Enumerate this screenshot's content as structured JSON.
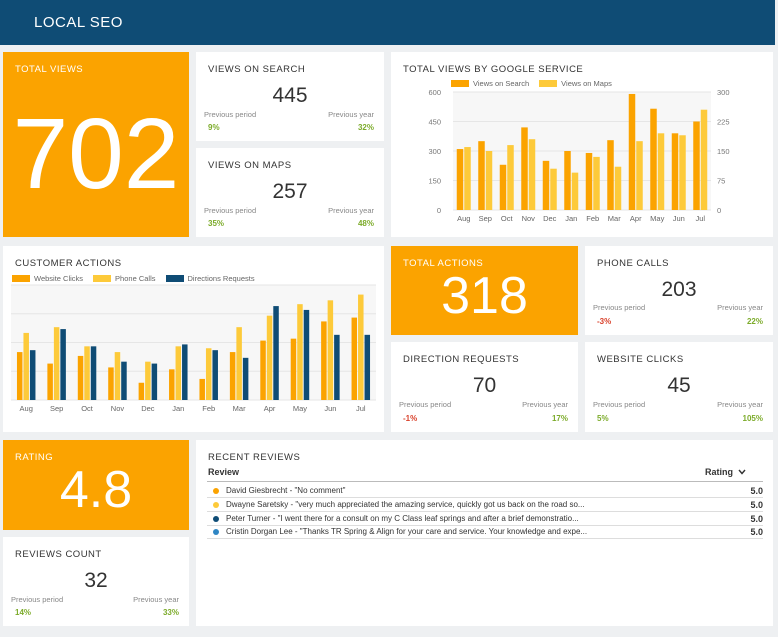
{
  "header": {
    "title": "LOCAL SEO"
  },
  "colors": {
    "orange": "#fba300",
    "yellow": "#fdca3a",
    "navy": "#0f4c75",
    "blue": "#2f86c4",
    "green": "#7cab2a",
    "red": "#d9412b"
  },
  "total_views": {
    "title": "TOTAL VIEWS",
    "value": "702"
  },
  "views_on_search": {
    "title": "VIEWS ON SEARCH",
    "value": "445",
    "prev_period_label": "Previous period",
    "prev_year_label": "Previous year",
    "prev_period": "9%",
    "prev_year": "32%"
  },
  "views_on_maps": {
    "title": "VIEWS ON MAPS",
    "value": "257",
    "prev_period_label": "Previous period",
    "prev_year_label": "Previous year",
    "prev_period": "35%",
    "prev_year": "48%"
  },
  "total_actions": {
    "title": "TOTAL ACTIONS",
    "value": "318"
  },
  "phone_calls": {
    "title": "PHONE CALLS",
    "value": "203",
    "prev_period_label": "Previous period",
    "prev_year_label": "Previous year",
    "prev_period": "-3%",
    "prev_year": "22%"
  },
  "direction_requests": {
    "title": "DIRECTION REQUESTS",
    "value": "70",
    "prev_period_label": "Previous period",
    "prev_year_label": "Previous year",
    "prev_period": "-1%",
    "prev_year": "17%"
  },
  "website_clicks": {
    "title": "WEBSITE CLICKS",
    "value": "45",
    "prev_period_label": "Previous period",
    "prev_year_label": "Previous year",
    "prev_period": "5%",
    "prev_year": "105%"
  },
  "rating": {
    "title": "RATING",
    "value": "4.8"
  },
  "reviews_count": {
    "title": "REVIEWS COUNT",
    "value": "32",
    "prev_period_label": "Previous period",
    "prev_year_label": "Previous year",
    "prev_period": "14%",
    "prev_year": "33%"
  },
  "recent_reviews": {
    "title": "RECENT REVIEWS",
    "col_review": "Review",
    "col_rating": "Rating",
    "sort_icon": "chevron-down-icon",
    "rows": [
      {
        "text": "David Giesbrecht - \"No comment\"",
        "score": "5.0",
        "color": "#fba300"
      },
      {
        "text": "Dwayne Saretsky - \"very much appreciated the amazing service, quickly got us back on the road so...",
        "score": "5.0",
        "color": "#fdca3a"
      },
      {
        "text": "Peter Turner - \"I went there for a consult on my C Class leaf springs and after a brief demonstratio...",
        "score": "5.0",
        "color": "#0f4c75"
      },
      {
        "text": "Cristin Dorgan Lee - \"Thanks TR Spring & Align for your care and service. Your knowledge and expe...",
        "score": "5.0",
        "color": "#2f86c4"
      }
    ]
  },
  "chart_data": [
    {
      "id": "google",
      "type": "bar",
      "title": "TOTAL VIEWS BY GOOGLE SERVICE",
      "categories": [
        "Aug",
        "Sep",
        "Oct",
        "Nov",
        "Dec",
        "Jan",
        "Feb",
        "Mar",
        "Apr",
        "May",
        "Jun",
        "Jul"
      ],
      "series": [
        {
          "name": "Views on Search",
          "values": [
            310,
            350,
            230,
            420,
            250,
            300,
            290,
            355,
            590,
            515,
            390,
            450
          ],
          "axis": "left",
          "color": "#fba300"
        },
        {
          "name": "Views on Maps",
          "values": [
            160,
            150,
            165,
            180,
            105,
            95,
            135,
            110,
            175,
            195,
            190,
            255
          ],
          "axis": "right",
          "color": "#fdca3a"
        }
      ],
      "ylim_left": [
        0,
        600
      ],
      "yticks_left": [
        "600",
        "450",
        "300",
        "150",
        "0"
      ],
      "ylim_right": [
        0,
        300
      ],
      "yticks_right": [
        "300",
        "225",
        "150",
        "75",
        "0"
      ]
    },
    {
      "id": "customer",
      "type": "bar",
      "title": "CUSTOMER ACTIONS",
      "categories": [
        "Aug",
        "Sep",
        "Oct",
        "Nov",
        "Dec",
        "Jan",
        "Feb",
        "Mar",
        "Apr",
        "May",
        "Jun",
        "Jul"
      ],
      "series": [
        {
          "name": "Website Clicks",
          "values": [
            25,
            19,
            23,
            17,
            9,
            16,
            11,
            25,
            31,
            32,
            41,
            43
          ],
          "color": "#fba300"
        },
        {
          "name": "Phone Calls",
          "values": [
            35,
            38,
            28,
            25,
            20,
            28,
            27,
            38,
            44,
            50,
            52,
            55
          ],
          "color": "#fdca3a"
        },
        {
          "name": "Directions Requests",
          "values": [
            26,
            37,
            28,
            20,
            19,
            29,
            26,
            22,
            49,
            47,
            34,
            34
          ],
          "color": "#0f4c75"
        }
      ],
      "ylim": [
        0,
        60
      ]
    }
  ]
}
